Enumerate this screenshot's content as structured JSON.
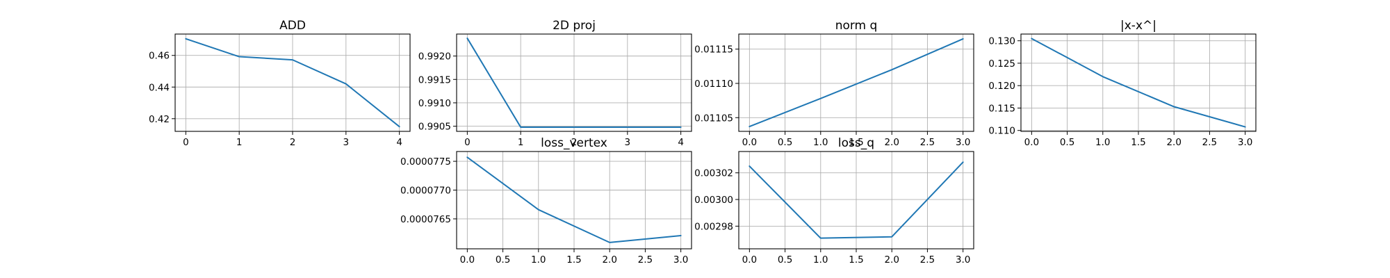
{
  "figure": {
    "line_color": "#1f77b4",
    "grid": true
  },
  "chart_data": [
    {
      "type": "line",
      "title": "ADD",
      "xlabel": "",
      "ylabel": "",
      "x": [
        0,
        1,
        2,
        3,
        4
      ],
      "series": [
        {
          "values": [
            0.4705,
            0.4592,
            0.4572,
            0.442,
            0.415
          ]
        }
      ],
      "xlim": [
        -0.2,
        4.2
      ],
      "ylim": [
        0.412,
        0.4735
      ],
      "xticks": [
        0,
        1,
        2,
        3,
        4
      ],
      "xtick_labels": [
        "0",
        "1",
        "2",
        "3",
        "4"
      ],
      "yticks": [
        0.42,
        0.44,
        0.46
      ],
      "ytick_labels": [
        "0.42",
        "0.44",
        "0.46"
      ]
    },
    {
      "type": "line",
      "title": "2D proj",
      "xlabel": "",
      "ylabel": "",
      "x": [
        0,
        1,
        2,
        3,
        4
      ],
      "series": [
        {
          "values": [
            0.99238,
            0.99048,
            0.99048,
            0.99048,
            0.99048
          ]
        }
      ],
      "xlim": [
        -0.2,
        4.2
      ],
      "ylim": [
        0.99039,
        0.99247
      ],
      "xticks": [
        0,
        1,
        2,
        3,
        4
      ],
      "xtick_labels": [
        "0",
        "1",
        "2",
        "3",
        "4"
      ],
      "yticks": [
        0.9905,
        0.991,
        0.9915,
        0.992
      ],
      "ytick_labels": [
        "0.9905",
        "0.9910",
        "0.9915",
        "0.9920"
      ]
    },
    {
      "type": "line",
      "title": "norm q",
      "xlabel": "",
      "ylabel": "",
      "x": [
        0,
        1,
        2,
        3
      ],
      "series": [
        {
          "values": [
            0.011037,
            0.011078,
            0.01112,
            0.011165
          ]
        }
      ],
      "xlim": [
        -0.15,
        3.15
      ],
      "ylim": [
        0.01103,
        0.011172
      ],
      "xticks": [
        0,
        0.5,
        1,
        1.5,
        2,
        2.5,
        3
      ],
      "xtick_labels": [
        "0.0",
        "0.5",
        "1.0",
        "1.5",
        "2.0",
        "2.5",
        "3.0"
      ],
      "yticks": [
        0.01105,
        0.0111,
        0.01115
      ],
      "ytick_labels": [
        "0.01105",
        "0.01110",
        "0.01115"
      ]
    },
    {
      "type": "line",
      "title": "|x-x^|",
      "xlabel": "",
      "ylabel": "",
      "x": [
        0,
        1,
        2,
        3
      ],
      "series": [
        {
          "values": [
            0.1305,
            0.122,
            0.1153,
            0.1108
          ]
        }
      ],
      "xlim": [
        -0.15,
        3.15
      ],
      "ylim": [
        0.1098,
        0.1315
      ],
      "xticks": [
        0,
        0.5,
        1,
        1.5,
        2,
        2.5,
        3
      ],
      "xtick_labels": [
        "0.0",
        "0.5",
        "1.0",
        "1.5",
        "2.0",
        "2.5",
        "3.0"
      ],
      "yticks": [
        0.11,
        0.115,
        0.12,
        0.125,
        0.13
      ],
      "ytick_labels": [
        "0.110",
        "0.115",
        "0.120",
        "0.125",
        "0.130"
      ]
    },
    {
      "type": "line",
      "title": "loss_vertex",
      "xlabel": "",
      "ylabel": "",
      "x": [
        0,
        1,
        2,
        3
      ],
      "series": [
        {
          "values": [
            7.757e-05,
            7.666e-05,
            7.609e-05,
            7.621e-05
          ]
        }
      ],
      "xlim": [
        -0.15,
        3.15
      ],
      "ylim": [
        7.598e-05,
        7.767e-05
      ],
      "xticks": [
        0,
        0.5,
        1,
        1.5,
        2,
        2.5,
        3
      ],
      "xtick_labels": [
        "0.0",
        "0.5",
        "1.0",
        "1.5",
        "2.0",
        "2.5",
        "3.0"
      ],
      "yticks": [
        7.65e-05,
        7.7e-05,
        7.75e-05
      ],
      "ytick_labels": [
        "0.0000765",
        "0.0000770",
        "0.0000775"
      ]
    },
    {
      "type": "line",
      "title": "loss_q",
      "xlabel": "",
      "ylabel": "",
      "x": [
        0,
        1,
        2,
        3
      ],
      "series": [
        {
          "values": [
            0.003025,
            0.002971,
            0.002972,
            0.003028
          ]
        }
      ],
      "xlim": [
        -0.15,
        3.15
      ],
      "ylim": [
        0.002963,
        0.003036
      ],
      "xticks": [
        0,
        0.5,
        1,
        1.5,
        2,
        2.5,
        3
      ],
      "xtick_labels": [
        "0.0",
        "0.5",
        "1.0",
        "1.5",
        "2.0",
        "2.5",
        "3.0"
      ],
      "yticks": [
        0.00298,
        0.003,
        0.00302
      ],
      "ytick_labels": [
        "0.00298",
        "0.00300",
        "0.00302"
      ]
    }
  ]
}
